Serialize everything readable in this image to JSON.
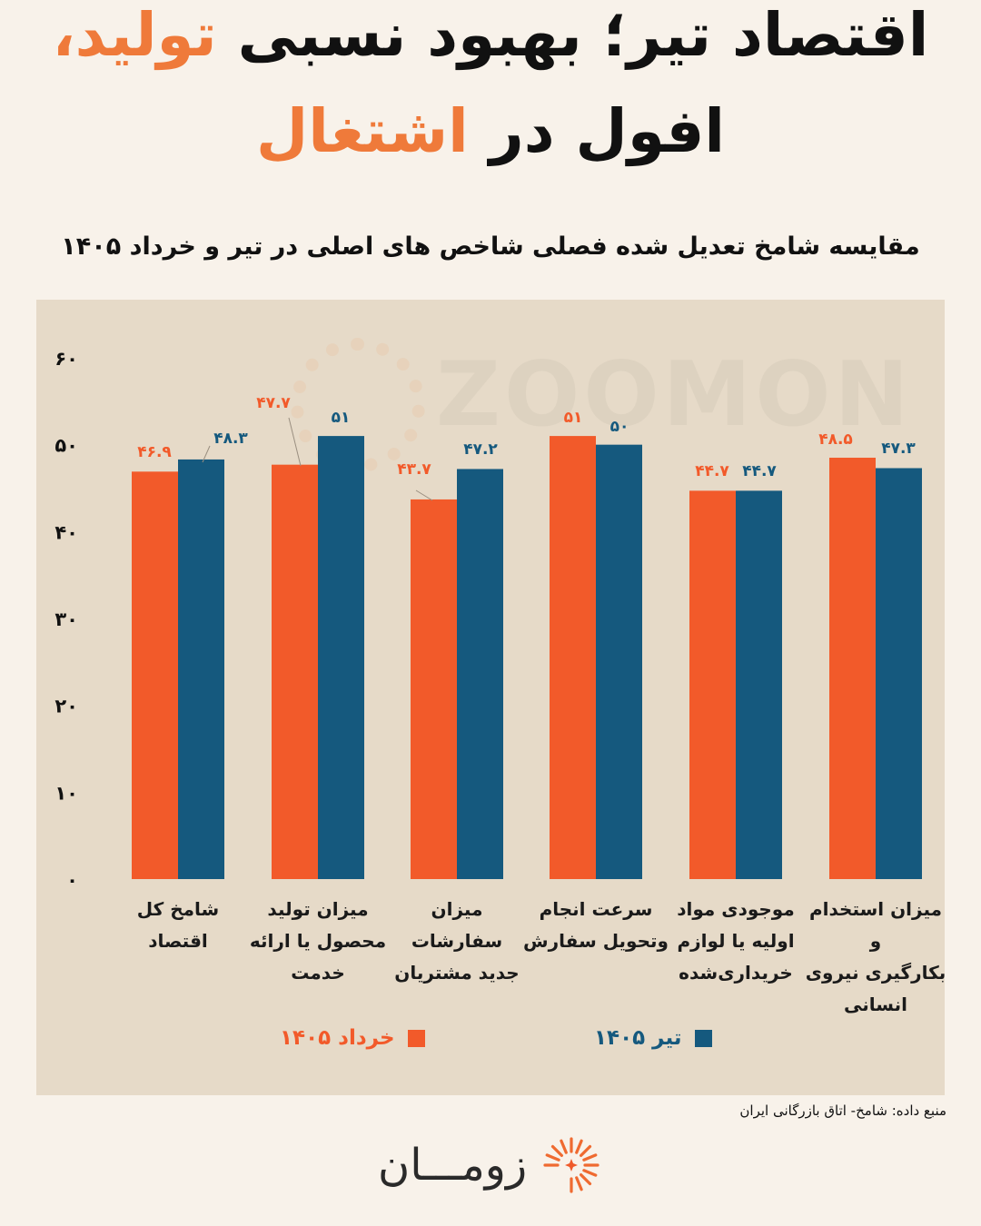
{
  "header": {
    "title_line1_part1": "اقتصاد تیر؛ بهبود نسبی",
    "title_line1_highlight": "تولید،",
    "title_line2_part1": "افول در",
    "title_line2_highlight": "اشتغال",
    "subtitle": "مقایسه شامخ تعدیل شده فصلی شاخص های اصلی در تیر و خرداد ۱۴۰۵"
  },
  "colors": {
    "series1": "#f25a2a",
    "series2": "#15597e",
    "highlight": "#ef7a3a",
    "panel": "#e6dac8"
  },
  "chart_data": {
    "type": "bar",
    "categories": [
      "شامخ کل اقتصاد",
      "میزان تولید محصول یا ارائه خدمت",
      "میزان سفارشات جدید مشتریان",
      "سرعت انجام وتحویل سفارش",
      "موجودی مواد اولیه یا لوازم خریداری‌شده",
      "میزان استخدام و بکارگیری نیروی انسانی"
    ],
    "category_lines": [
      [
        "شامخ کل اقتصاد"
      ],
      [
        "میزان تولید",
        "محصول یا ارائه",
        "خدمت"
      ],
      [
        "میزان سفارشات",
        "جدید مشتریان"
      ],
      [
        "سرعت انجام",
        "وتحویل سفارش"
      ],
      [
        "موجودی مواد",
        "اولیه یا لوازم",
        "خریداری‌شده"
      ],
      [
        "میزان استخدام و",
        "بکارگیری نیروی",
        "انسانی"
      ]
    ],
    "series": [
      {
        "name": "خرداد ۱۴۰۵",
        "values": [
          46.9,
          47.7,
          43.7,
          51,
          44.7,
          48.5
        ],
        "labels": [
          "۴۶.۹",
          "۴۷.۷",
          "۴۳.۷",
          "۵۱",
          "۴۴.۷",
          "۴۸.۵"
        ]
      },
      {
        "name": "تیر ۱۴۰۵",
        "values": [
          48.3,
          51,
          47.2,
          50,
          44.7,
          47.3
        ],
        "labels": [
          "۴۸.۳",
          "۵۱",
          "۴۷.۲",
          "۵۰",
          "۴۴.۷",
          "۴۷.۳"
        ]
      }
    ],
    "y_ticks": [
      0,
      10,
      20,
      30,
      40,
      50,
      60
    ],
    "y_tick_labels": [
      "۰",
      "۱۰",
      "۲۰",
      "۳۰",
      "۴۰",
      "۵۰",
      "۶۰"
    ],
    "ylim": [
      0,
      60
    ],
    "grid": false,
    "legend_position": "bottom",
    "title": "",
    "xlabel": "",
    "ylabel": ""
  },
  "watermark": {
    "text": "ZOOMON"
  },
  "footer": {
    "source": "منبع داده: شامخ- اتاق بازرگانی ایران",
    "logo_text": "زومـــان"
  }
}
